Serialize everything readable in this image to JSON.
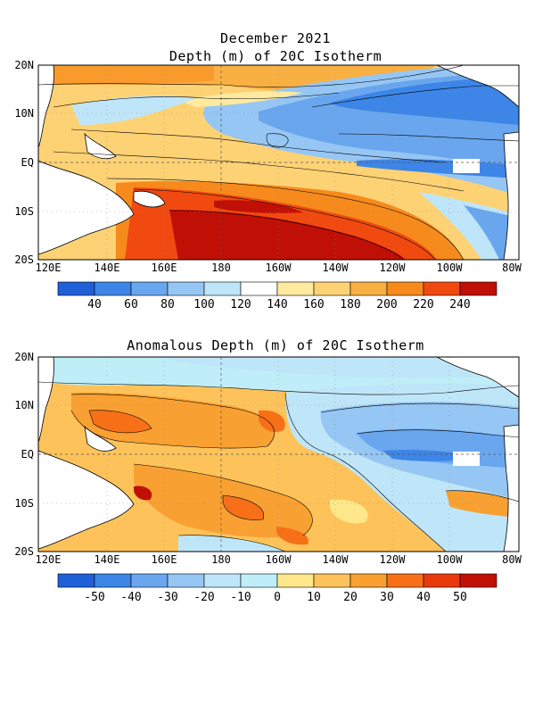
{
  "top_panel": {
    "title_line1": "December 2021",
    "title_line2": "Depth (m) of 20C Isotherm",
    "lat_labels": [
      "20N",
      "10N",
      "EQ",
      "10S",
      "20S"
    ],
    "lon_labels": [
      "120E",
      "140E",
      "160E",
      "180",
      "160W",
      "140W",
      "120W",
      "100W",
      "80W"
    ],
    "colorbar_labels": [
      "40",
      "60",
      "80",
      "100",
      "120",
      "140",
      "160",
      "180",
      "200",
      "220",
      "240"
    ],
    "colorbar_colors": [
      "#1f5fd8",
      "#3d85e6",
      "#6aa6ee",
      "#96c6f4",
      "#bfe6f8",
      "#ffffff",
      "#ffeaa0",
      "#fdd275",
      "#f9b042",
      "#f78a1c",
      "#f04a10",
      "#c01005"
    ]
  },
  "bottom_panel": {
    "title": "Anomalous Depth (m) of 20C Isotherm",
    "lat_labels": [
      "20N",
      "10N",
      "EQ",
      "10S",
      "20S"
    ],
    "lon_labels": [
      "120E",
      "140E",
      "160E",
      "180",
      "160W",
      "140W",
      "120W",
      "100W",
      "80W"
    ],
    "colorbar_labels": [
      "-50",
      "-40",
      "-30",
      "-20",
      "-10",
      "0",
      "10",
      "20",
      "30",
      "40",
      "50"
    ],
    "colorbar_colors": [
      "#1f5fd8",
      "#3d85e6",
      "#6aa6ee",
      "#96c6f4",
      "#bfe6f8",
      "#bfeef8",
      "#ffe88c",
      "#fdc35a",
      "#f9a032",
      "#f77018",
      "#e83a0c",
      "#c01005"
    ]
  }
}
